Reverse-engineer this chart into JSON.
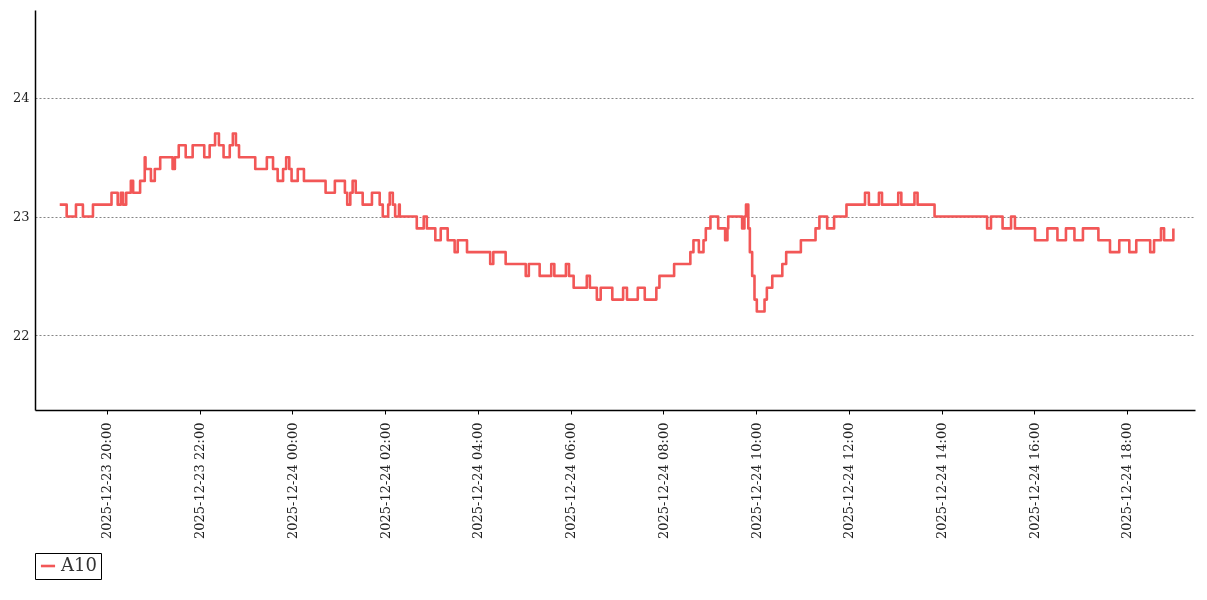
{
  "chart_data": {
    "type": "step",
    "x": [
      "2025-12-23T18:59",
      "2025-12-23T19:08",
      "2025-12-23T19:20",
      "2025-12-23T19:29",
      "2025-12-23T19:42",
      "2025-12-23T20:06",
      "2025-12-23T20:14",
      "2025-12-23T20:18",
      "2025-12-23T20:21",
      "2025-12-23T20:25",
      "2025-12-23T20:31",
      "2025-12-23T20:34",
      "2025-12-23T20:43",
      "2025-12-23T20:49",
      "2025-12-23T20:50",
      "2025-12-23T20:57",
      "2025-12-23T21:02",
      "2025-12-23T21:09",
      "2025-12-23T21:25",
      "2025-12-23T21:28",
      "2025-12-23T21:33",
      "2025-12-23T21:42",
      "2025-12-23T21:51",
      "2025-12-23T22:06",
      "2025-12-23T22:13",
      "2025-12-23T22:20",
      "2025-12-23T22:25",
      "2025-12-23T22:31",
      "2025-12-23T22:39",
      "2025-12-23T22:43",
      "2025-12-23T22:47",
      "2025-12-23T22:51",
      "2025-12-23T23:12",
      "2025-12-23T23:27",
      "2025-12-23T23:35",
      "2025-12-23T23:41",
      "2025-12-23T23:48",
      "2025-12-23T23:52",
      "2025-12-23T23:56",
      "2025-12-23T23:59",
      "2025-12-24T00:07",
      "2025-12-24T00:15",
      "2025-12-24T00:43",
      "2025-12-24T00:55",
      "2025-12-24T01:08",
      "2025-12-24T01:11",
      "2025-12-24T01:15",
      "2025-12-24T01:18",
      "2025-12-24T01:22",
      "2025-12-24T01:31",
      "2025-12-24T01:43",
      "2025-12-24T01:53",
      "2025-12-24T01:57",
      "2025-12-24T02:04",
      "2025-12-24T02:06",
      "2025-12-24T02:10",
      "2025-12-24T02:13",
      "2025-12-24T02:18",
      "2025-12-24T02:19",
      "2025-12-24T02:41",
      "2025-12-24T02:50",
      "2025-12-24T02:54",
      "2025-12-24T03:05",
      "2025-12-24T03:12",
      "2025-12-24T03:21",
      "2025-12-24T03:30",
      "2025-12-24T03:34",
      "2025-12-24T03:46",
      "2025-12-24T04:16",
      "2025-12-24T04:20",
      "2025-12-24T04:36",
      "2025-12-24T05:02",
      "2025-12-24T05:06",
      "2025-12-24T05:20",
      "2025-12-24T05:35",
      "2025-12-24T05:39",
      "2025-12-24T05:54",
      "2025-12-24T05:58",
      "2025-12-24T06:04",
      "2025-12-24T06:21",
      "2025-12-24T06:25",
      "2025-12-24T06:34",
      "2025-12-24T06:39",
      "2025-12-24T06:54",
      "2025-12-24T07:08",
      "2025-12-24T07:13",
      "2025-12-24T07:27",
      "2025-12-24T07:36",
      "2025-12-24T07:51",
      "2025-12-24T07:55",
      "2025-12-24T08:14",
      "2025-12-24T08:35",
      "2025-12-24T08:39",
      "2025-12-24T08:46",
      "2025-12-24T08:52",
      "2025-12-24T08:55",
      "2025-12-24T09:01",
      "2025-12-24T09:11",
      "2025-12-24T09:20",
      "2025-12-24T09:23",
      "2025-12-24T09:24",
      "2025-12-24T09:42",
      "2025-12-24T09:45",
      "2025-12-24T09:47",
      "2025-12-24T09:50",
      "2025-12-24T09:52",
      "2025-12-24T09:55",
      "2025-12-24T09:58",
      "2025-12-24T10:01",
      "2025-12-24T10:11",
      "2025-12-24T10:14",
      "2025-12-24T10:21",
      "2025-12-24T10:34",
      "2025-12-24T10:39",
      "2025-12-24T10:58",
      "2025-12-24T11:17",
      "2025-12-24T11:22",
      "2025-12-24T11:32",
      "2025-12-24T11:41",
      "2025-12-24T11:57",
      "2025-12-24T12:21",
      "2025-12-24T12:26",
      "2025-12-24T12:39",
      "2025-12-24T12:43",
      "2025-12-24T13:04",
      "2025-12-24T13:08",
      "2025-12-24T13:25",
      "2025-12-24T13:29",
      "2025-12-24T13:51",
      "2025-12-24T14:59",
      "2025-12-24T15:04",
      "2025-12-24T15:19",
      "2025-12-24T15:30",
      "2025-12-24T15:35",
      "2025-12-24T16:01",
      "2025-12-24T16:17",
      "2025-12-24T16:30",
      "2025-12-24T16:41",
      "2025-12-24T16:52",
      "2025-12-24T17:03",
      "2025-12-24T17:23",
      "2025-12-24T17:38",
      "2025-12-24T17:50",
      "2025-12-24T18:03",
      "2025-12-24T18:12",
      "2025-12-24T18:30",
      "2025-12-24T18:35",
      "2025-12-24T18:44",
      "2025-12-24T18:48",
      "2025-12-24T19:00"
    ],
    "series": [
      {
        "name": "A10",
        "color": "#f25757",
        "values": [
          23.1,
          23.0,
          23.1,
          23.0,
          23.1,
          23.2,
          23.1,
          23.2,
          23.1,
          23.2,
          23.3,
          23.2,
          23.3,
          23.5,
          23.4,
          23.3,
          23.4,
          23.5,
          23.4,
          23.5,
          23.6,
          23.5,
          23.6,
          23.5,
          23.6,
          23.7,
          23.6,
          23.5,
          23.6,
          23.7,
          23.6,
          23.5,
          23.4,
          23.5,
          23.4,
          23.3,
          23.4,
          23.5,
          23.4,
          23.3,
          23.4,
          23.3,
          23.2,
          23.3,
          23.2,
          23.1,
          23.2,
          23.3,
          23.2,
          23.1,
          23.2,
          23.1,
          23.0,
          23.1,
          23.2,
          23.1,
          23.0,
          23.1,
          23.0,
          22.9,
          23.0,
          22.9,
          22.8,
          22.9,
          22.8,
          22.7,
          22.8,
          22.7,
          22.6,
          22.7,
          22.6,
          22.5,
          22.6,
          22.5,
          22.6,
          22.5,
          22.6,
          22.5,
          22.4,
          22.5,
          22.4,
          22.3,
          22.4,
          22.3,
          22.4,
          22.3,
          22.4,
          22.3,
          22.4,
          22.5,
          22.6,
          22.7,
          22.8,
          22.7,
          22.8,
          22.9,
          23.0,
          22.9,
          22.8,
          22.9,
          23.0,
          22.9,
          23.0,
          23.1,
          22.9,
          22.7,
          22.5,
          22.3,
          22.2,
          22.3,
          22.4,
          22.5,
          22.6,
          22.7,
          22.8,
          22.9,
          23.0,
          22.9,
          23.0,
          23.1,
          23.2,
          23.1,
          23.2,
          23.1,
          23.2,
          23.1,
          23.2,
          23.1,
          23.0,
          22.9,
          23.0,
          22.9,
          23.0,
          22.9,
          22.8,
          22.9,
          22.8,
          22.9,
          22.8,
          22.9,
          22.8,
          22.7,
          22.8,
          22.7,
          22.8,
          22.7,
          22.8,
          22.9,
          22.8,
          22.9
        ]
      }
    ],
    "xlim": [
      "2025-12-23T18:27",
      "2025-12-24T19:28"
    ],
    "xticks": [
      {
        "value": "2025-12-23T20:00",
        "label": "2025-12-23 20:00"
      },
      {
        "value": "2025-12-23T22:00",
        "label": "2025-12-23 22:00"
      },
      {
        "value": "2025-12-24T00:00",
        "label": "2025-12-24 00:00"
      },
      {
        "value": "2025-12-24T02:00",
        "label": "2025-12-24 02:00"
      },
      {
        "value": "2025-12-24T04:00",
        "label": "2025-12-24 04:00"
      },
      {
        "value": "2025-12-24T06:00",
        "label": "2025-12-24 06:00"
      },
      {
        "value": "2025-12-24T08:00",
        "label": "2025-12-24 08:00"
      },
      {
        "value": "2025-12-24T10:00",
        "label": "2025-12-24 10:00"
      },
      {
        "value": "2025-12-24T12:00",
        "label": "2025-12-24 12:00"
      },
      {
        "value": "2025-12-24T14:00",
        "label": "2025-12-24 14:00"
      },
      {
        "value": "2025-12-24T16:00",
        "label": "2025-12-24 16:00"
      },
      {
        "value": "2025-12-24T18:00",
        "label": "2025-12-24 18:00"
      }
    ],
    "ylim": [
      21.37,
      24.74
    ],
    "yticks": [
      22,
      23,
      24
    ],
    "grid": "y",
    "legend": "bottom"
  }
}
